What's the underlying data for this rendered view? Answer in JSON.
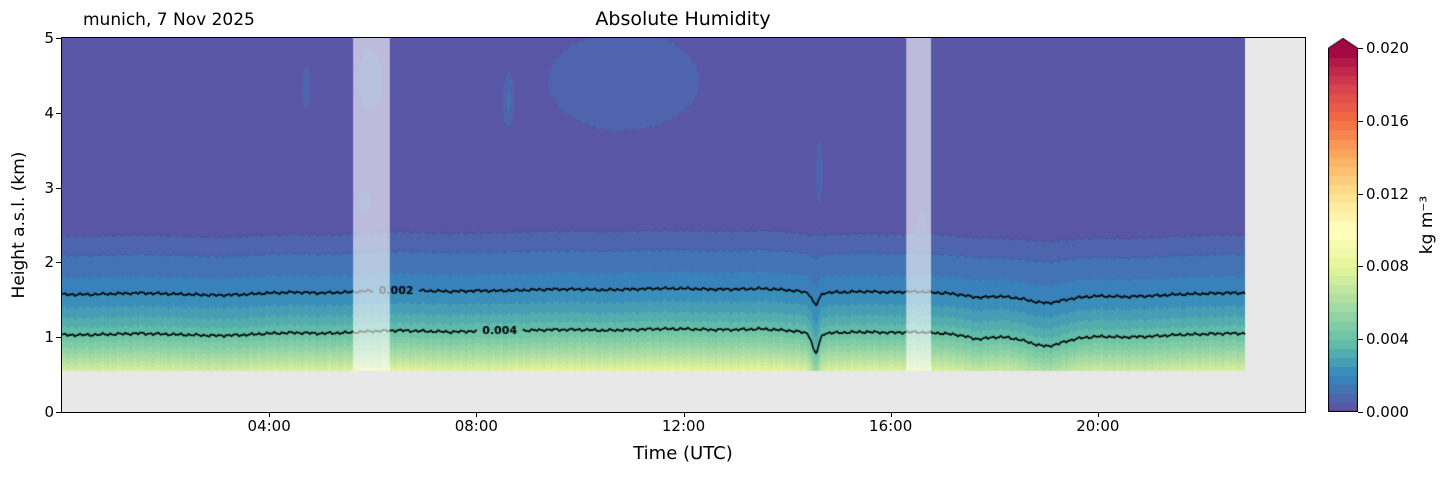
{
  "figure": {
    "title": "Absolute Humidity",
    "station_label": "munich, 7 Nov 2025",
    "xlabel": "Time (UTC)",
    "ylabel": "Height a.s.l. (km)",
    "background": "#ffffff",
    "axes_background": "#e8e8e8"
  },
  "colorbar": {
    "label": "kg m⁻³",
    "vmin": 0.0,
    "vmax": 0.02,
    "extend": "max",
    "tick_values": [
      0.0,
      0.004,
      0.008,
      0.012,
      0.016,
      0.02
    ],
    "tick_labels": [
      "0.000",
      "0.004",
      "0.008",
      "0.012",
      "0.016",
      "0.020"
    ]
  },
  "chart_data": {
    "type": "filled-contour",
    "title": "Absolute Humidity",
    "station": "munich",
    "date": "7 Nov 2025",
    "xlabel": "Time (UTC)",
    "ylabel": "Height a.s.l. (km)",
    "units": "kg m⁻³",
    "x_range_hours": [
      0,
      24
    ],
    "x_ticks": [
      {
        "hour": 4,
        "label": "04:00"
      },
      {
        "hour": 8,
        "label": "08:00"
      },
      {
        "hour": 12,
        "label": "12:00"
      },
      {
        "hour": 16,
        "label": "16:00"
      },
      {
        "hour": 20,
        "label": "20:00"
      }
    ],
    "y_range_km": [
      0,
      5
    ],
    "y_ticks": [
      {
        "km": 0,
        "label": "0"
      },
      {
        "km": 1,
        "label": "1"
      },
      {
        "km": 2,
        "label": "2"
      },
      {
        "km": 3,
        "label": "3"
      },
      {
        "km": 4,
        "label": "4"
      },
      {
        "km": 5,
        "label": "5"
      }
    ],
    "data_time_range": [
      0.0,
      22.85
    ],
    "data_height_range": [
      0.55,
      5.0
    ],
    "value_range": [
      0.0,
      0.02
    ],
    "level_step": 0.0005,
    "colormap": "Spectral_r",
    "colormap_stops": [
      "#5e4fa2",
      "#3288bd",
      "#66c2a5",
      "#abdda4",
      "#e6f598",
      "#ffffbf",
      "#fee08b",
      "#fdae61",
      "#f46d43",
      "#d53e4f",
      "#9e0142"
    ],
    "profile": {
      "h_of_0004_km": 1.03,
      "h_of_0002_km": 1.57,
      "h_of_00005_km": 2.35,
      "scale_height_km": 0.78,
      "upper_falloff": 3.16,
      "surface_value": 0.0074
    },
    "labeled_contours": [
      {
        "level": 0.002,
        "label": "0.002",
        "label_hour": 6.45
      },
      {
        "level": 0.004,
        "label": "0.004",
        "label_hour": 8.45
      }
    ],
    "thin_contour_levels": [
      0.0005,
      0.001
    ],
    "wiggle_dt_hours": 0.5,
    "wiggle_km": [
      0.0,
      0.0,
      0.01,
      0.02,
      0.01,
      0.0,
      -0.01,
      0.0,
      0.02,
      0.03,
      0.02,
      0.03,
      0.05,
      0.06,
      0.05,
      0.04,
      0.05,
      0.05,
      0.06,
      0.07,
      0.07,
      0.06,
      0.07,
      0.08,
      0.08,
      0.07,
      0.07,
      0.08,
      0.06,
      0.02,
      0.03,
      0.04,
      0.03,
      0.04,
      0.02,
      -0.01,
      -0.02,
      -0.04,
      -0.06,
      -0.04,
      -0.02,
      -0.03,
      -0.02,
      0.0,
      0.01,
      0.02,
      0.02,
      0.02,
      0.02
    ],
    "dips": [
      {
        "t": 14.55,
        "width": 0.09,
        "amp": 0.26
      },
      {
        "t": 17.7,
        "width": 0.25,
        "amp": 0.04
      },
      {
        "t": 19.0,
        "width": 0.45,
        "amp": 0.09
      }
    ],
    "aloft_blobs": [
      {
        "t": 4.72,
        "h": 4.3,
        "st": 0.1,
        "sh": 0.38,
        "amp": 0.0009
      },
      {
        "t": 5.95,
        "h": 4.4,
        "st": 0.3,
        "sh": 0.55,
        "amp": 0.0009
      },
      {
        "t": 5.85,
        "h": 2.78,
        "st": 0.22,
        "sh": 0.22,
        "amp": 0.0006
      },
      {
        "t": 8.62,
        "h": 4.1,
        "st": 0.1,
        "sh": 0.35,
        "amp": 0.0009
      },
      {
        "t": 10.85,
        "h": 4.35,
        "st": 2.0,
        "sh": 0.9,
        "amp": 0.00085
      },
      {
        "t": 14.62,
        "h": 3.2,
        "st": 0.09,
        "sh": 0.5,
        "amp": 0.0009
      },
      {
        "t": 16.6,
        "h": 2.6,
        "st": 0.15,
        "sh": 0.2,
        "amp": 0.0004
      }
    ],
    "gap_bands_hours": [
      [
        5.62,
        6.33
      ],
      [
        16.3,
        16.78
      ]
    ]
  }
}
